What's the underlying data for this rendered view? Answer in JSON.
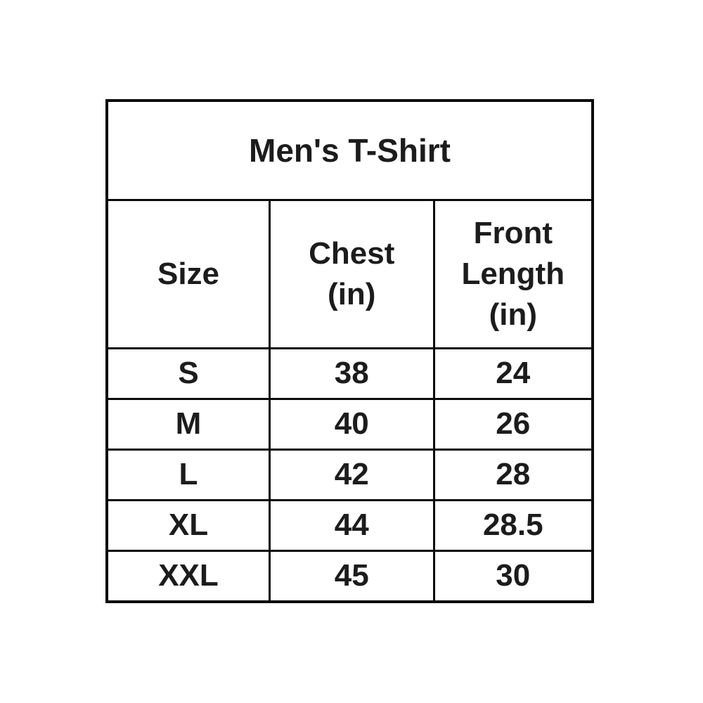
{
  "page": {
    "background_color": "#ffffff",
    "border_color": "#0a0a0a",
    "text_color": "#1c1c1c"
  },
  "size_chart": {
    "title": "Men's T-Shirt",
    "columns": {
      "size": "Size",
      "chest": "Chest\n(in)",
      "front_length": "Front\nLength\n(in)"
    },
    "rows": [
      {
        "size": "S",
        "chest_in": "38",
        "front_length_in": "24"
      },
      {
        "size": "M",
        "chest_in": "40",
        "front_length_in": "26"
      },
      {
        "size": "L",
        "chest_in": "42",
        "front_length_in": "28"
      },
      {
        "size": "XL",
        "chest_in": "44",
        "front_length_in": "28.5"
      },
      {
        "size": "XXL",
        "chest_in": "45",
        "front_length_in": "30"
      }
    ]
  },
  "chart_data": {
    "type": "table",
    "title": "Men's T-Shirt",
    "columns": [
      "Size",
      "Chest (in)",
      "Front Length (in)"
    ],
    "rows": [
      [
        "S",
        38,
        24
      ],
      [
        "M",
        40,
        26
      ],
      [
        "L",
        42,
        28
      ],
      [
        "XL",
        44,
        28.5
      ],
      [
        "XXL",
        45,
        30
      ]
    ],
    "layout_hints": {
      "grid": "all-borders",
      "title_row_spans_all_columns": true,
      "text_style": "bold",
      "alignment": "center"
    }
  }
}
